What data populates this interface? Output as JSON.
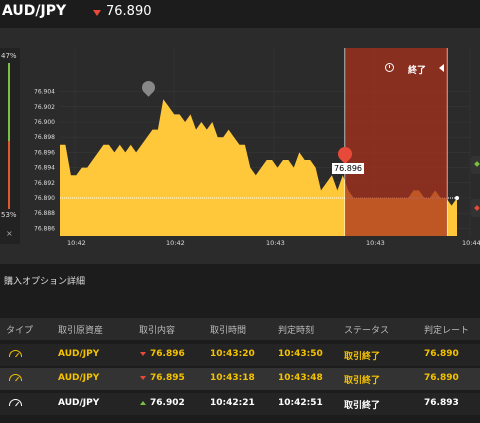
{
  "header": {
    "pair": "AUD/JPY",
    "price": "76.890"
  },
  "sidebar": {
    "pct_top": "47%",
    "pct_bottom": "53%",
    "close": "×"
  },
  "chart_data": {
    "type": "area",
    "yticks": [
      "76.904",
      "76.902",
      "76.900",
      "76.898",
      "76.896",
      "76.894",
      "76.892",
      "76.890",
      "76.888",
      "76.886"
    ],
    "xticks": [
      "10:42",
      "10:42",
      "10:43",
      "10:43",
      "10:44"
    ],
    "ylim": [
      76.885,
      76.905
    ],
    "current_price": 76.89,
    "marker_label": "76.896",
    "expiry_label": "終了",
    "points": [
      76.897,
      76.897,
      76.893,
      76.893,
      76.894,
      76.894,
      76.895,
      76.896,
      76.897,
      76.897,
      76.896,
      76.897,
      76.896,
      76.897,
      76.896,
      76.897,
      76.898,
      76.899,
      76.899,
      76.903,
      76.902,
      76.901,
      76.901,
      76.9,
      76.901,
      76.899,
      76.9,
      76.899,
      76.9,
      76.898,
      76.898,
      76.899,
      76.898,
      76.897,
      76.897,
      76.894,
      76.893,
      76.894,
      76.895,
      76.895,
      76.894,
      76.895,
      76.895,
      76.894,
      76.896,
      76.895,
      76.895,
      76.894,
      76.891,
      76.892,
      76.893,
      76.891,
      76.893,
      76.891,
      76.89,
      76.89,
      76.89,
      76.89,
      76.89,
      76.89,
      76.89,
      76.89,
      76.89,
      76.89,
      76.89,
      76.891,
      76.891,
      76.89,
      76.89,
      76.891,
      76.89,
      76.89,
      76.889,
      76.89
    ]
  },
  "section_title": "購入オプション詳細",
  "table": {
    "headers": [
      "タイプ",
      "取引原資産",
      "取引内容",
      "取引時間",
      "判定時刻",
      "ステータス",
      "判定レート"
    ],
    "rows": [
      {
        "asset": "AUD/JPY",
        "dir": "down",
        "content": "76.896",
        "time": "10:43:20",
        "judge": "10:43:50",
        "status": "取引終了",
        "rate": "76.890"
      },
      {
        "asset": "AUD/JPY",
        "dir": "down",
        "content": "76.895",
        "time": "10:43:18",
        "judge": "10:43:48",
        "status": "取引終了",
        "rate": "76.890"
      },
      {
        "asset": "AUD/JPY",
        "dir": "up",
        "content": "76.902",
        "time": "10:42:21",
        "judge": "10:42:51",
        "status": "取引終了",
        "rate": "76.893"
      }
    ]
  }
}
